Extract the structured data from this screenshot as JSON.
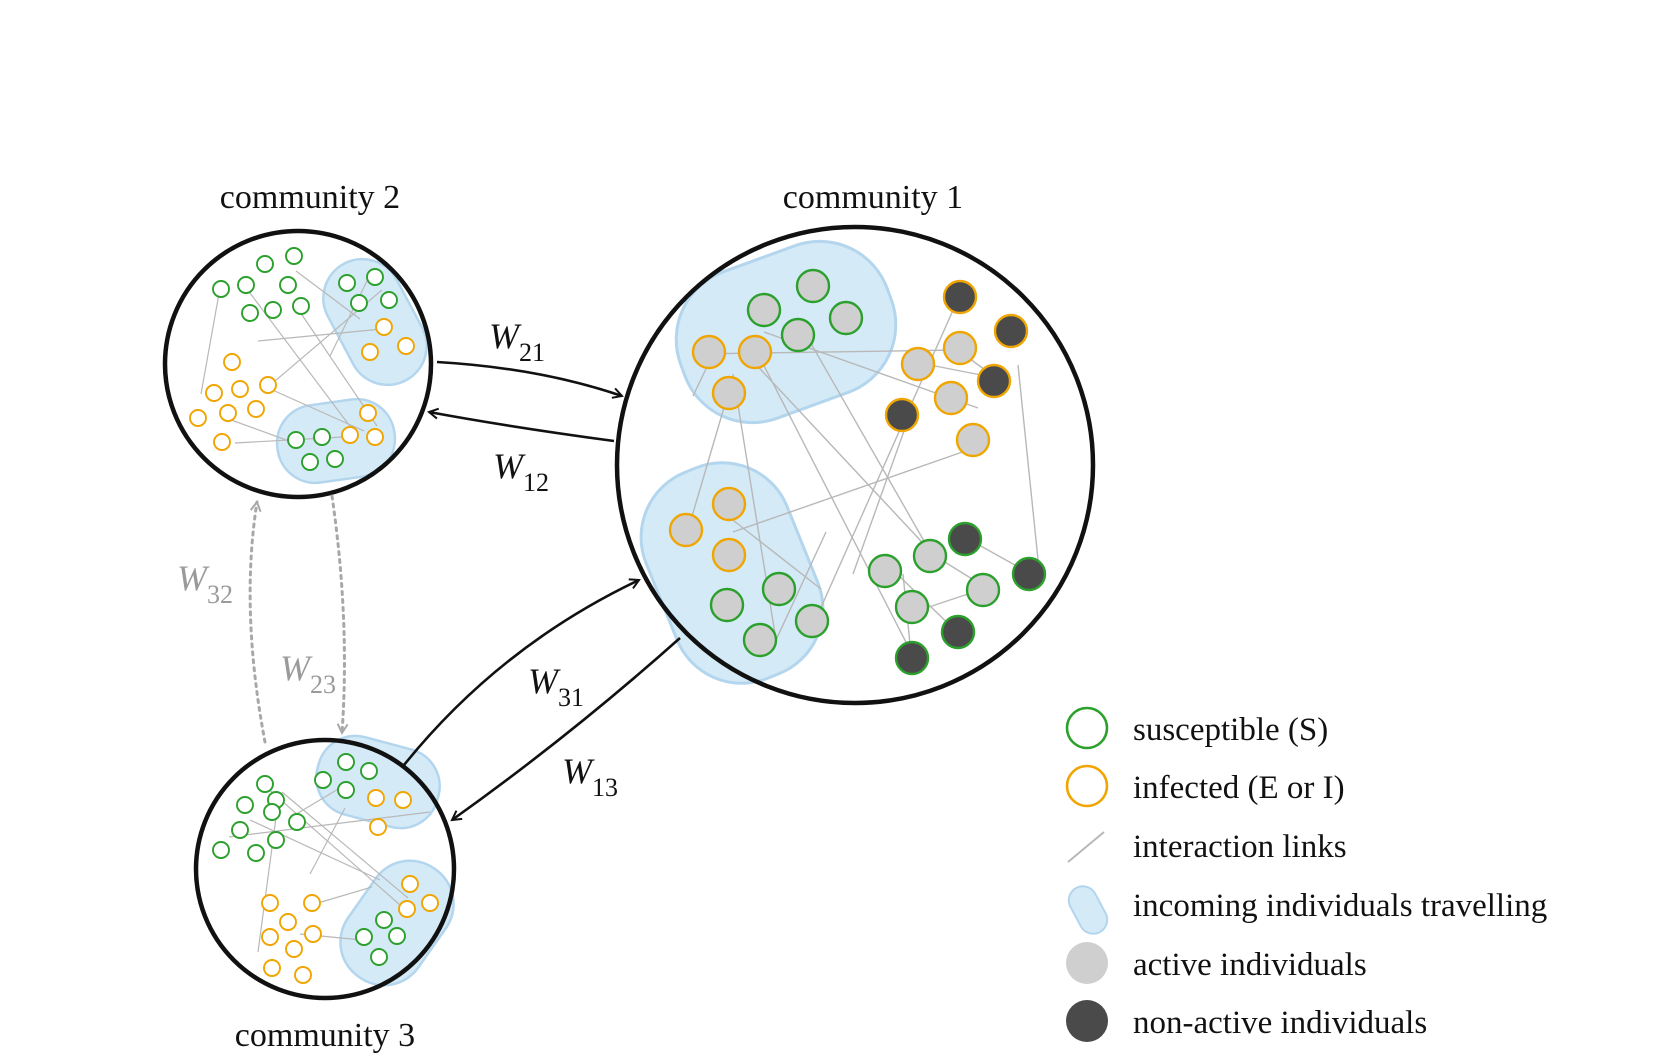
{
  "communities": {
    "c1": {
      "label": "community 1"
    },
    "c2": {
      "label": "community 2"
    },
    "c3": {
      "label": "community 3"
    }
  },
  "weights": {
    "w21": {
      "symbol": "W",
      "subscript": "21"
    },
    "w12": {
      "symbol": "W",
      "subscript": "12"
    },
    "w31": {
      "symbol": "W",
      "subscript": "31"
    },
    "w13": {
      "symbol": "W",
      "subscript": "13"
    },
    "w32": {
      "symbol": "W",
      "subscript": "32"
    },
    "w23": {
      "symbol": "W",
      "subscript": "23"
    }
  },
  "legend": {
    "susceptible": "susceptible (S)",
    "infected": "infected (E or I)",
    "links": "interaction links",
    "travelling": "incoming individuals travelling",
    "active": "active individuals",
    "nonactive": "non-active individuals"
  },
  "colors": {
    "susceptible": "#2ca02c",
    "infected": "#f0a500",
    "link": "#b8b8b8",
    "travel_fill": "#d4eaf7",
    "travel_stroke": "#b3d6ee",
    "active": "#cfcfcf",
    "nonactive": "#4a4a4a",
    "arrow": "#111111",
    "arrow_dotted": "#a8a8a8"
  }
}
